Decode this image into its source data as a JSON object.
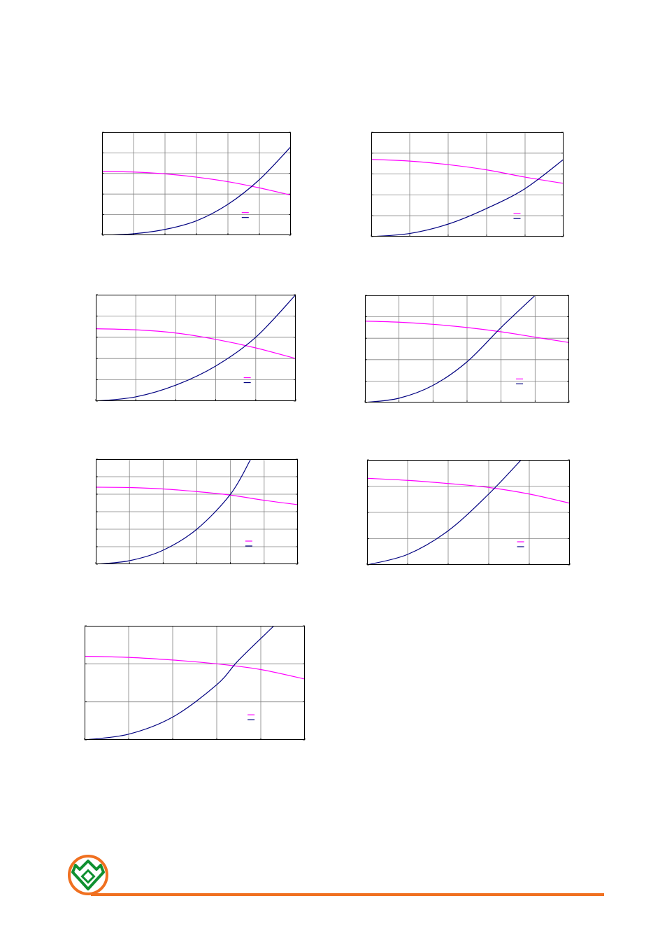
{
  "colors": {
    "series_a": "#ff00ff",
    "series_b": "#000080",
    "grid": "#808080",
    "frame": "#000000",
    "brand_orange": "#f07020",
    "brand_green": "#109030"
  },
  "logo": {
    "icon": "brand-logo-icon"
  },
  "chart_data": [
    {
      "type": "line",
      "xlim": [
        0,
        6
      ],
      "ylim": [
        0,
        5
      ],
      "grid": true,
      "legend": "bottom-right",
      "series": [
        {
          "color": "#ff00ff",
          "x": [
            0,
            1,
            2,
            3,
            4,
            5,
            6
          ],
          "y": [
            3.1,
            3.07,
            2.98,
            2.82,
            2.6,
            2.3,
            1.95
          ]
        },
        {
          "color": "#000080",
          "x": [
            0,
            1,
            2,
            3,
            4,
            5,
            6
          ],
          "y": [
            0,
            0.07,
            0.28,
            0.7,
            1.5,
            2.7,
            4.3
          ]
        }
      ]
    },
    {
      "type": "line",
      "xlim": [
        0,
        5
      ],
      "ylim": [
        0,
        5
      ],
      "grid": true,
      "legend": "bottom-right",
      "series": [
        {
          "color": "#ff00ff",
          "x": [
            0,
            1,
            2,
            3,
            4,
            5
          ],
          "y": [
            3.7,
            3.62,
            3.45,
            3.2,
            2.85,
            2.55
          ]
        },
        {
          "color": "#000080",
          "x": [
            0,
            1,
            2,
            3,
            4,
            5
          ],
          "y": [
            0,
            0.15,
            0.6,
            1.35,
            2.3,
            3.7
          ]
        }
      ]
    },
    {
      "type": "line",
      "xlim": [
        0,
        5
      ],
      "ylim": [
        0,
        5
      ],
      "grid": true,
      "legend": "bottom-right",
      "series": [
        {
          "color": "#ff00ff",
          "x": [
            0,
            1,
            2,
            3,
            4,
            5
          ],
          "y": [
            3.4,
            3.35,
            3.2,
            2.9,
            2.5,
            2.0
          ]
        },
        {
          "color": "#000080",
          "x": [
            0,
            1,
            2,
            3,
            4,
            5
          ],
          "y": [
            0,
            0.2,
            0.75,
            1.65,
            3.0,
            5.0
          ]
        }
      ]
    },
    {
      "type": "line",
      "xlim": [
        0,
        6
      ],
      "ylim": [
        0,
        5
      ],
      "grid": true,
      "legend": "bottom-right",
      "series": [
        {
          "color": "#ff00ff",
          "x": [
            0,
            1,
            2,
            3,
            4,
            5,
            6
          ],
          "y": [
            3.8,
            3.75,
            3.65,
            3.5,
            3.3,
            3.05,
            2.8
          ]
        },
        {
          "color": "#000080",
          "x": [
            0,
            1,
            2,
            3,
            4,
            5
          ],
          "y": [
            0,
            0.2,
            0.8,
            1.9,
            3.5,
            5.0
          ]
        }
      ]
    },
    {
      "type": "line",
      "xlim": [
        0,
        6
      ],
      "ylim": [
        0,
        6
      ],
      "grid": true,
      "legend": "bottom-right",
      "series": [
        {
          "color": "#ff00ff",
          "x": [
            0,
            1,
            2,
            3,
            4,
            5,
            6
          ],
          "y": [
            4.4,
            4.38,
            4.3,
            4.15,
            3.95,
            3.65,
            3.4
          ]
        },
        {
          "color": "#000080",
          "x": [
            0,
            1,
            2,
            3,
            4,
            4.6
          ],
          "y": [
            0,
            0.2,
            0.8,
            2.0,
            4.0,
            6.0
          ]
        }
      ]
    },
    {
      "type": "line",
      "xlim": [
        0,
        5
      ],
      "ylim": [
        0,
        4
      ],
      "grid": true,
      "legend": "bottom-right",
      "series": [
        {
          "color": "#ff00ff",
          "x": [
            0,
            1,
            2,
            3,
            4,
            5
          ],
          "y": [
            3.3,
            3.22,
            3.1,
            2.95,
            2.7,
            2.35
          ]
        },
        {
          "color": "#000080",
          "x": [
            0,
            1,
            2,
            3,
            3.8
          ],
          "y": [
            0,
            0.4,
            1.3,
            2.7,
            4.0
          ]
        }
      ]
    },
    {
      "type": "line",
      "xlim": [
        0,
        5
      ],
      "ylim": [
        0,
        3
      ],
      "grid": true,
      "legend": "bottom-right",
      "series": [
        {
          "color": "#ff00ff",
          "x": [
            0,
            1,
            2,
            3,
            4,
            5
          ],
          "y": [
            2.2,
            2.17,
            2.1,
            2.0,
            1.85,
            1.6
          ]
        },
        {
          "color": "#000080",
          "x": [
            0,
            1,
            2,
            3,
            3.5,
            4.3
          ],
          "y": [
            0,
            0.15,
            0.6,
            1.45,
            2.1,
            3.0
          ]
        }
      ]
    }
  ]
}
